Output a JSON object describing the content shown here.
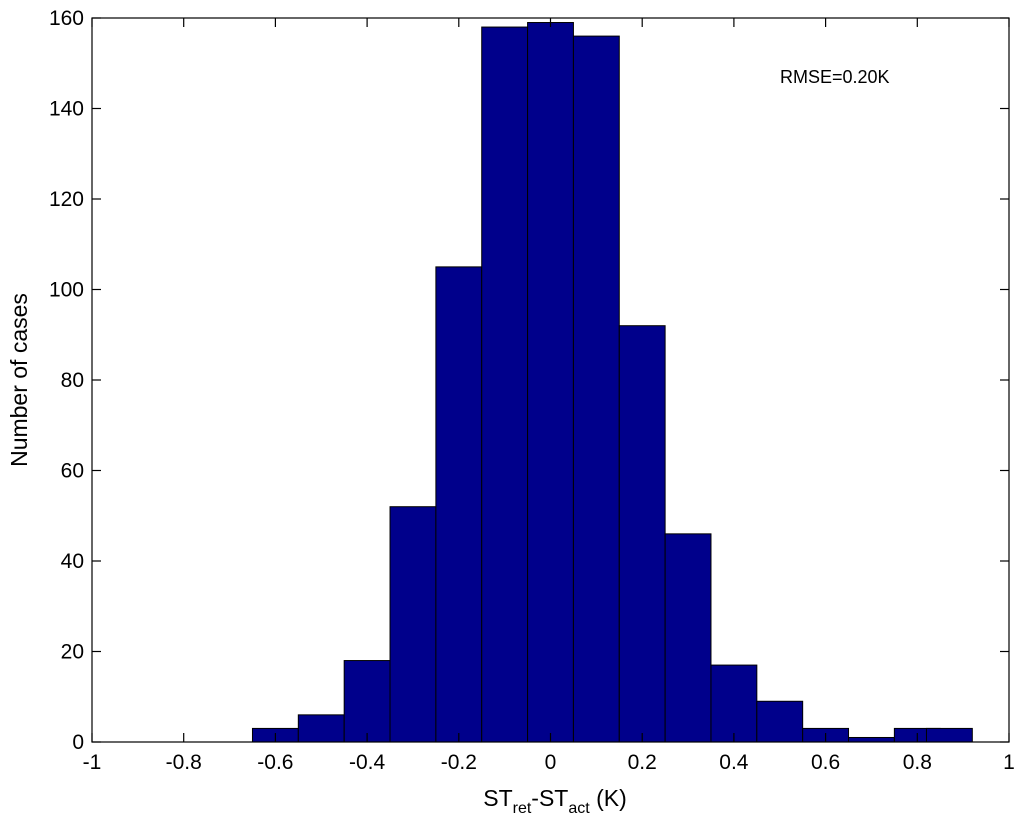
{
  "chart_data": {
    "type": "bar",
    "subtype": "histogram",
    "bins": [
      {
        "center": -0.6,
        "count": 3
      },
      {
        "center": -0.5,
        "count": 6
      },
      {
        "center": -0.4,
        "count": 18
      },
      {
        "center": -0.3,
        "count": 52
      },
      {
        "center": -0.2,
        "count": 105
      },
      {
        "center": -0.1,
        "count": 158
      },
      {
        "center": 0.0,
        "count": 159
      },
      {
        "center": 0.1,
        "count": 156
      },
      {
        "center": 0.2,
        "count": 92
      },
      {
        "center": 0.3,
        "count": 46
      },
      {
        "center": 0.4,
        "count": 17
      },
      {
        "center": 0.5,
        "count": 9
      },
      {
        "center": 0.6,
        "count": 3
      },
      {
        "center": 0.7,
        "count": 1
      },
      {
        "center": 0.8,
        "count": 3
      },
      {
        "center": 0.87,
        "count": 3
      }
    ],
    "bin_width": 0.1,
    "xlim": [
      -1,
      1
    ],
    "ylim": [
      0,
      160
    ],
    "xticks": [
      "-1",
      "-0.8",
      "-0.6",
      "-0.4",
      "-0.2",
      "0",
      "0.2",
      "0.4",
      "0.6",
      "0.8",
      "1"
    ],
    "yticks": [
      "0",
      "20",
      "40",
      "60",
      "80",
      "100",
      "120",
      "140",
      "160"
    ],
    "xlabel": {
      "base1": "ST",
      "sub1": "ret",
      "mid": "-ST",
      "sub2": "act",
      "tail": " (K)"
    },
    "ylabel": "Number of cases",
    "annotation": "RMSE=0.20K",
    "bar_color": "#00008b",
    "edge_color": "#000000",
    "grid": false
  }
}
